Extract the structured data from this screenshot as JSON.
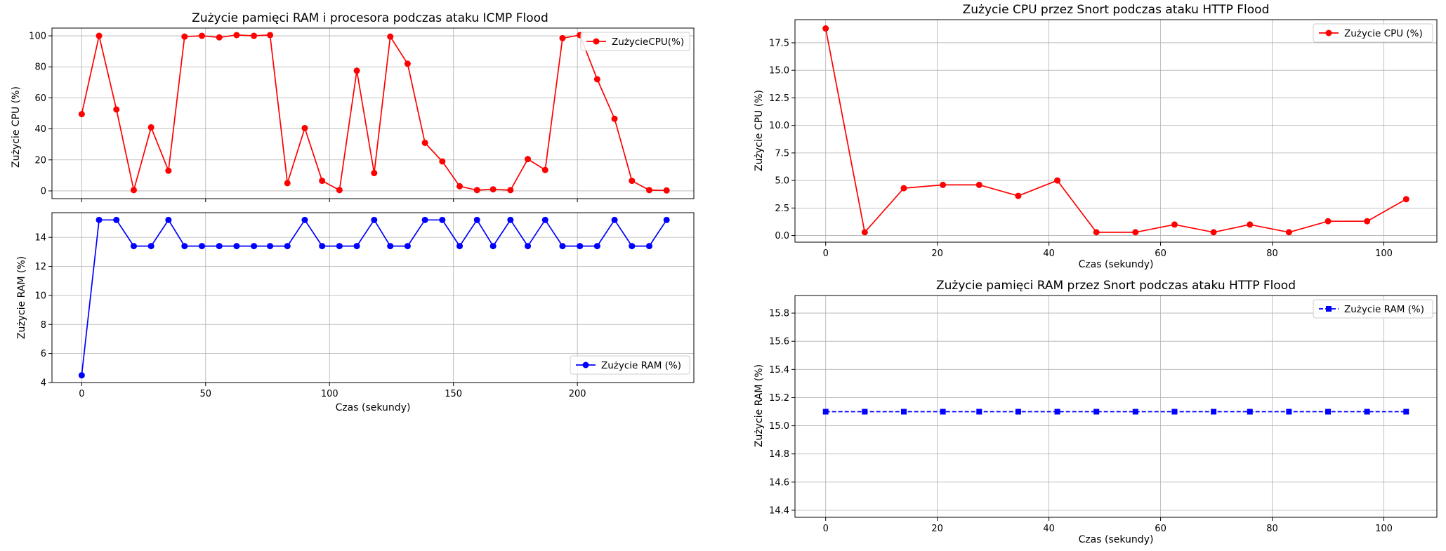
{
  "chart_data": [
    {
      "id": "icmp-cpu",
      "type": "line",
      "title": "Zużycie pamięci RAM i procesora podczas ataku ICMP Flood",
      "xlabel": "",
      "ylabel": "Zużycie CPU (%)",
      "xlim": [
        -12,
        247
      ],
      "ylim": [
        -5,
        105
      ],
      "xticks": [
        0,
        50,
        100,
        150,
        200
      ],
      "xticklabels": [],
      "yticks": [
        0,
        20,
        40,
        60,
        80,
        100
      ],
      "yticklabels": [
        "0",
        "20",
        "40",
        "60",
        "80",
        "100"
      ],
      "grid": true,
      "legend": "top-right",
      "series": [
        {
          "name": "ZużycieCPU(%)",
          "color": "#ff0000",
          "marker": "circle",
          "linestyle": "solid",
          "x": [
            0,
            7,
            14,
            21,
            28,
            35,
            41.5,
            48.5,
            55.5,
            62.5,
            69.5,
            76,
            83,
            90,
            97,
            104,
            111,
            118,
            124.5,
            131.5,
            138.5,
            145.5,
            152.5,
            159.5,
            166,
            173,
            180,
            187,
            194,
            201,
            208,
            215,
            222,
            229,
            236
          ],
          "y": [
            49.5,
            100,
            52.5,
            0.5,
            41,
            13,
            99.5,
            100,
            99,
            100.5,
            100,
            100.5,
            5,
            40.5,
            6.5,
            0.5,
            77.5,
            11.5,
            99.5,
            82,
            31,
            19,
            3,
            0.5,
            1,
            0.5,
            20.5,
            13.5,
            98.5,
            100.5,
            72,
            46.5,
            6.5,
            0.5,
            0.3
          ]
        }
      ]
    },
    {
      "id": "icmp-ram",
      "type": "line",
      "title": "",
      "xlabel": "Czas (sekundy)",
      "ylabel": "Zużycie RAM (%)",
      "xlim": [
        -12,
        247
      ],
      "ylim": [
        4,
        15.7
      ],
      "xticks": [
        0,
        50,
        100,
        150,
        200
      ],
      "xticklabels": [
        "0",
        "50",
        "100",
        "150",
        "200"
      ],
      "yticks": [
        4,
        6,
        8,
        10,
        12,
        14
      ],
      "yticklabels": [
        "4",
        "6",
        "8",
        "10",
        "12",
        "14"
      ],
      "grid": true,
      "legend": "lower-right",
      "series": [
        {
          "name": "Zużycie RAM (%)",
          "color": "#0000ff",
          "marker": "circle",
          "linestyle": "solid",
          "x": [
            0,
            7,
            14,
            21,
            28,
            35,
            41.5,
            48.5,
            55.5,
            62.5,
            69.5,
            76,
            83,
            90,
            97,
            104,
            111,
            118,
            124.5,
            131.5,
            138.5,
            145.5,
            152.5,
            159.5,
            166,
            173,
            180,
            187,
            194,
            201,
            208,
            215,
            222,
            229,
            236
          ],
          "y": [
            4.5,
            15.2,
            15.2,
            13.4,
            13.4,
            15.2,
            13.4,
            13.4,
            13.4,
            13.4,
            13.4,
            13.4,
            13.4,
            15.2,
            13.4,
            13.4,
            13.4,
            15.2,
            13.4,
            13.4,
            15.2,
            15.2,
            13.4,
            15.2,
            13.4,
            15.2,
            13.4,
            15.2,
            13.4,
            13.4,
            13.4,
            15.2,
            13.4,
            13.4,
            15.2
          ]
        }
      ]
    },
    {
      "id": "http-cpu",
      "type": "line",
      "title": "Zużycie CPU przez Snort podczas ataku HTTP Flood",
      "xlabel": "Czas (sekundy)",
      "ylabel": "Zużycie CPU (%)",
      "xlim": [
        -5.5,
        109.5
      ],
      "ylim": [
        -0.6,
        19.6
      ],
      "xticks": [
        0,
        20,
        40,
        60,
        80,
        100
      ],
      "xticklabels": [
        "0",
        "20",
        "40",
        "60",
        "80",
        "100"
      ],
      "yticks": [
        0,
        2.5,
        5,
        7.5,
        10,
        12.5,
        15,
        17.5
      ],
      "yticklabels": [
        "0.0",
        "2.5",
        "5.0",
        "7.5",
        "10.0",
        "12.5",
        "15.0",
        "17.5"
      ],
      "grid": true,
      "legend": "top-right",
      "series": [
        {
          "name": "Zużycie CPU (%)",
          "color": "#ff0000",
          "marker": "circle",
          "linestyle": "solid",
          "x": [
            0,
            7,
            14,
            21,
            27.5,
            34.5,
            41.5,
            48.5,
            55.5,
            62.5,
            69.5,
            76,
            83,
            90,
            97,
            104
          ],
          "y": [
            18.8,
            0.3,
            4.3,
            4.6,
            4.6,
            3.6,
            5.0,
            0.3,
            0.3,
            1.0,
            0.3,
            1.0,
            0.3,
            1.3,
            1.3,
            3.3
          ]
        }
      ]
    },
    {
      "id": "http-ram",
      "type": "line",
      "title": "Zużycie pamięci RAM przez Snort podczas ataku HTTP Flood",
      "xlabel": "Czas (sekundy)",
      "ylabel": "Zużycie RAM (%)",
      "xlim": [
        -5.5,
        109.5
      ],
      "ylim": [
        14.35,
        15.925
      ],
      "xticks": [
        0,
        20,
        40,
        60,
        80,
        100
      ],
      "xticklabels": [
        "0",
        "20",
        "40",
        "60",
        "80",
        "100"
      ],
      "yticks": [
        14.4,
        14.6,
        14.8,
        15.0,
        15.2,
        15.4,
        15.6,
        15.8
      ],
      "yticklabels": [
        "14.4",
        "14.6",
        "14.8",
        "15.0",
        "15.2",
        "15.4",
        "15.6",
        "15.8"
      ],
      "grid": true,
      "legend": "top-right",
      "series": [
        {
          "name": "Zużycie RAM (%)",
          "color": "#0000ff",
          "marker": "square",
          "linestyle": "dashed",
          "x": [
            0,
            7,
            14,
            21,
            27.5,
            34.5,
            41.5,
            48.5,
            55.5,
            62.5,
            69.5,
            76,
            83,
            90,
            97,
            104
          ],
          "y": [
            15.1,
            15.1,
            15.1,
            15.1,
            15.1,
            15.1,
            15.1,
            15.1,
            15.1,
            15.1,
            15.1,
            15.1,
            15.1,
            15.1,
            15.1,
            15.1
          ]
        }
      ]
    }
  ]
}
